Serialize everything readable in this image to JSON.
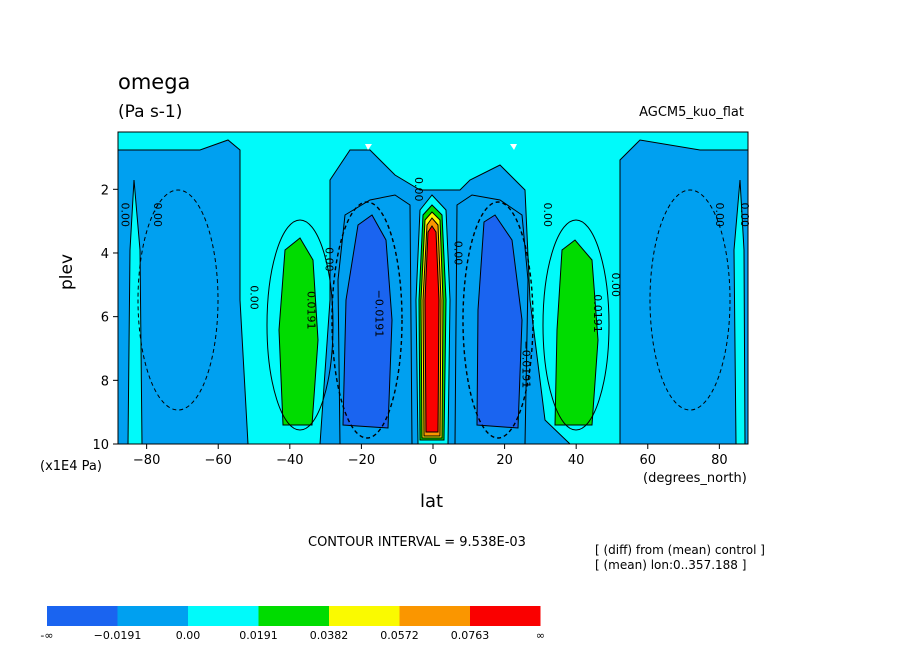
{
  "title": "omega",
  "units": "(Pa s-1)",
  "experiment": "AGCM5_kuo_flat",
  "contour_interval_text": "CONTOUR INTERVAL = 9.538E-03",
  "notes": [
    "[ (diff) from (mean) control ]",
    "[ (mean) lon:0..357.188 ]"
  ],
  "colors": {
    "band_lt_neg": "#1a64f0",
    "band_neg": "#00a0f0",
    "band_zero": "#00fafa",
    "band_pos1": "#00dc00",
    "band_pos2": "#fafa00",
    "band_pos3": "#fa9600",
    "band_pos4": "#fa0000"
  },
  "chart_data": {
    "type": "contour",
    "title": "omega",
    "xlabel": "lat",
    "ylabel": "plev",
    "x_units": "(degrees_north)",
    "y_units": "(x1E4 Pa)",
    "xlim": [
      -88,
      88
    ],
    "ylim": [
      10,
      0.2
    ],
    "y_axis_reversed": true,
    "x_ticks": [
      -80,
      -60,
      -40,
      -20,
      0,
      20,
      40,
      60,
      80
    ],
    "x_tick_labels": [
      "−80",
      "−60",
      "−40",
      "−20",
      "0",
      "20",
      "40",
      "60",
      "80"
    ],
    "y_ticks": [
      2,
      4,
      6,
      8,
      10
    ],
    "y_tick_labels": [
      "2",
      "4",
      "6",
      "8",
      "10"
    ],
    "contour_interval": 0.009538,
    "levels": [
      -0.0191,
      0.0,
      0.0191,
      0.0382,
      0.0572,
      0.0763
    ],
    "colorbar_labels": [
      "-∞",
      "−0.0191",
      "0.00",
      "0.0191",
      "0.0382",
      "0.0572",
      "0.0763",
      "∞"
    ],
    "colorbar_colors": [
      "#1a64f0",
      "#00a0f0",
      "#00fafa",
      "#00dc00",
      "#fafa00",
      "#fa9600",
      "#fa0000"
    ],
    "contour_labels": [
      {
        "text": "0.00",
        "lat": -87,
        "plev": 2.8
      },
      {
        "text": "0.00",
        "lat": -78,
        "plev": 2.8
      },
      {
        "text": "0.00",
        "lat": -51,
        "plev": 5.4
      },
      {
        "text": "0.0191",
        "lat": -35,
        "plev": 5.8
      },
      {
        "text": "0.00",
        "lat": -30,
        "plev": 4.2
      },
      {
        "text": "−0.0191",
        "lat": -16,
        "plev": 5.9
      },
      {
        "text": "0.00",
        "lat": -5,
        "plev": 2.0
      },
      {
        "text": "0.00",
        "lat": 6,
        "plev": 4.0
      },
      {
        "text": "0.00",
        "lat": 31,
        "plev": 2.8
      },
      {
        "text": "−0.0191",
        "lat": 25,
        "plev": 7.5
      },
      {
        "text": "0.0191",
        "lat": 45,
        "plev": 5.9
      },
      {
        "text": "0.00",
        "lat": 50,
        "plev": 5.0
      },
      {
        "text": "0.00",
        "lat": 79,
        "plev": 2.8
      },
      {
        "text": "0.00",
        "lat": 86,
        "plev": 2.8
      }
    ]
  }
}
